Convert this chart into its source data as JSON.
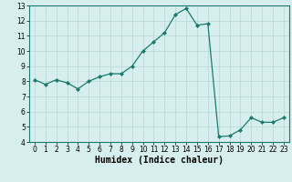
{
  "x": [
    0,
    1,
    2,
    3,
    4,
    5,
    6,
    7,
    8,
    9,
    10,
    11,
    12,
    13,
    14,
    15,
    16,
    17,
    18,
    19,
    20,
    21,
    22,
    23
  ],
  "y": [
    8.1,
    7.8,
    8.1,
    7.9,
    7.5,
    8.0,
    8.3,
    8.5,
    8.5,
    9.0,
    10.0,
    10.6,
    11.2,
    12.4,
    12.8,
    11.7,
    11.8,
    4.35,
    4.4,
    4.8,
    5.6,
    5.3,
    5.3,
    5.6
  ],
  "line_color": "#1a7a6e",
  "marker": "D",
  "marker_size": 2.0,
  "bg_color": "#d6efee",
  "grid_color": "#b8d8d6",
  "xlabel": "Humidex (Indice chaleur)",
  "ylim": [
    4,
    13
  ],
  "xlim": [
    -0.5,
    23.5
  ],
  "yticks": [
    4,
    5,
    6,
    7,
    8,
    9,
    10,
    11,
    12,
    13
  ],
  "xticks": [
    0,
    1,
    2,
    3,
    4,
    5,
    6,
    7,
    8,
    9,
    10,
    11,
    12,
    13,
    14,
    15,
    16,
    17,
    18,
    19,
    20,
    21,
    22,
    23
  ],
  "tick_fontsize": 5.5,
  "xlabel_fontsize": 7.0
}
